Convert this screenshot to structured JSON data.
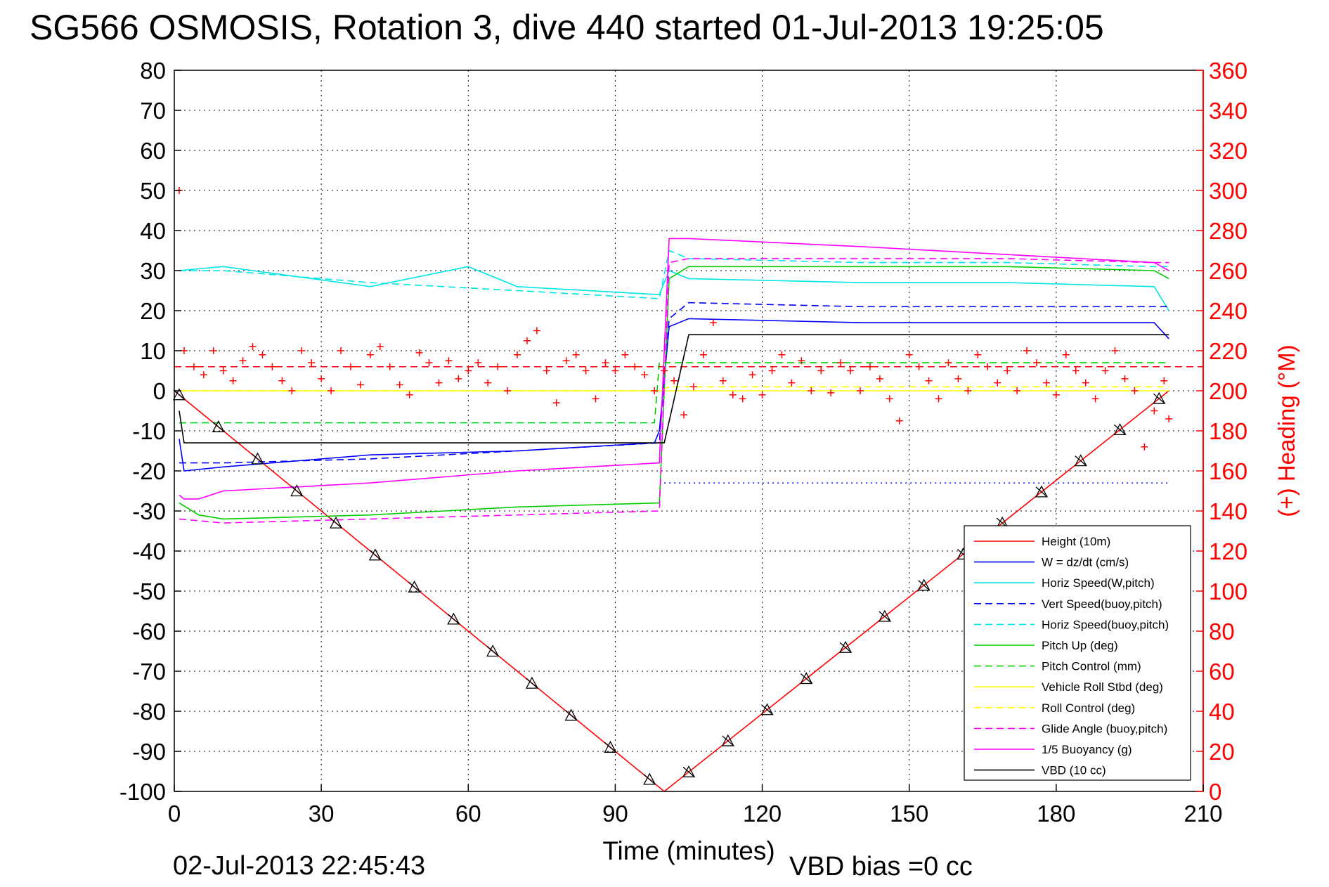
{
  "chart_data": {
    "type": "line",
    "title": "SG566 OSMOSIS, Rotation 3, dive 440 started 01-Jul-2013 19:25:05",
    "xlabel": "Time (minutes)",
    "ylabel": "",
    "y2label": "(+) Heading (°M)",
    "xlim": [
      0,
      210
    ],
    "ylim": [
      -100,
      80
    ],
    "y2lim": [
      0,
      360
    ],
    "xticks": [
      0,
      30,
      60,
      90,
      120,
      150,
      180,
      210
    ],
    "yticks": [
      80,
      70,
      60,
      50,
      40,
      30,
      20,
      10,
      0,
      -10,
      -20,
      -30,
      -40,
      -50,
      -60,
      -70,
      -80,
      -90,
      -100
    ],
    "y2ticks": [
      360,
      340,
      320,
      300,
      280,
      260,
      240,
      220,
      200,
      180,
      160,
      140,
      120,
      100,
      80,
      60,
      40,
      20,
      0
    ],
    "grid": true,
    "legend_position": "bottom-right",
    "series": [
      {
        "name": "Height (10m)",
        "color": "#ff0000",
        "style": "solid",
        "x": [
          0,
          100,
          203
        ],
        "y": [
          0,
          -100,
          0
        ]
      },
      {
        "name": "W = dz/dt (cm/s)",
        "color": "#0000ff",
        "style": "solid",
        "x": [
          1,
          2,
          10,
          40,
          70,
          98,
          99,
          101,
          105,
          140,
          170,
          200,
          203
        ],
        "y": [
          -12,
          -20,
          -19,
          -16,
          -15,
          -13,
          -10,
          16,
          18,
          17,
          17,
          17,
          13
        ]
      },
      {
        "name": "Horiz Speed(W,pitch)",
        "color": "#00e5e5",
        "style": "solid",
        "x": [
          1,
          10,
          40,
          60,
          70,
          99,
          101,
          105,
          140,
          170,
          200,
          203
        ],
        "y": [
          30,
          31,
          26,
          31,
          26,
          24,
          30,
          28,
          27,
          27,
          26,
          20
        ]
      },
      {
        "name": "Vert Speed(buoy,pitch)",
        "color": "#0000ff",
        "style": "dashed",
        "x": [
          1,
          10,
          40,
          70,
          99,
          101,
          105,
          140,
          170,
          200,
          203
        ],
        "y": [
          -18,
          -18,
          -17,
          -15,
          -13,
          18,
          22,
          21,
          21,
          21,
          21
        ]
      },
      {
        "name": "Horiz Speed(buoy,pitch)",
        "color": "#00e5e5",
        "style": "dashed",
        "x": [
          1,
          10,
          40,
          70,
          99,
          101,
          105,
          140,
          170,
          200,
          203
        ],
        "y": [
          30,
          30,
          27,
          25,
          23,
          35,
          33,
          32,
          32,
          31,
          31
        ]
      },
      {
        "name": "Pitch Up (deg)",
        "color": "#00cc00",
        "style": "solid",
        "x": [
          1,
          5,
          10,
          40,
          70,
          99,
          101,
          105,
          140,
          170,
          200,
          203
        ],
        "y": [
          -28,
          -31,
          -32,
          -31,
          -29,
          -28,
          28,
          31,
          31,
          31,
          30,
          28
        ]
      },
      {
        "name": "Pitch Control (mm)",
        "color": "#00cc00",
        "style": "dashed",
        "x": [
          1,
          98,
          99,
          203
        ],
        "y": [
          -8,
          -8,
          7,
          7
        ]
      },
      {
        "name": "Vehicle Roll Stbd (deg)",
        "color": "#ffff00",
        "style": "solid",
        "x": [
          1,
          99,
          101,
          203
        ],
        "y": [
          0,
          0,
          0,
          0
        ]
      },
      {
        "name": "Roll Control (deg)",
        "color": "#ffff00",
        "style": "dashed",
        "x": [
          1,
          99,
          101,
          203
        ],
        "y": [
          0,
          0,
          1,
          1
        ]
      },
      {
        "name": "Glide Angle (buoy,pitch)",
        "color": "#ff00ff",
        "style": "dashed",
        "x": [
          1,
          10,
          40,
          70,
          99,
          101,
          105,
          140,
          170,
          200,
          203
        ],
        "y": [
          -32,
          -33,
          -32,
          -31,
          -30,
          32,
          33,
          33,
          33,
          32,
          32
        ]
      },
      {
        "name": "1/5 Buoyancy (g)",
        "color": "#ff00ff",
        "style": "solid",
        "x": [
          1,
          2,
          5,
          10,
          40,
          70,
          99,
          101,
          105,
          140,
          170,
          200,
          203
        ],
        "y": [
          -26,
          -27,
          -27,
          -25,
          -23,
          -20,
          -18,
          38,
          38,
          36,
          34,
          32,
          30
        ]
      },
      {
        "name": "VBD (10 cc)",
        "color": "#000000",
        "style": "solid",
        "x": [
          1,
          2,
          100,
          105,
          203
        ],
        "y": [
          -5,
          -13,
          -13,
          14,
          14
        ]
      }
    ],
    "heading_markers": {
      "color": "#ff0000",
      "marker": "+",
      "x": [
        1,
        2,
        4,
        6,
        8,
        10,
        12,
        14,
        16,
        18,
        20,
        22,
        24,
        26,
        28,
        30,
        32,
        34,
        36,
        38,
        40,
        42,
        44,
        46,
        48,
        50,
        52,
        54,
        56,
        58,
        60,
        62,
        64,
        66,
        68,
        70,
        72,
        74,
        76,
        78,
        80,
        82,
        84,
        86,
        88,
        90,
        92,
        94,
        96,
        98,
        100,
        102,
        104,
        106,
        108,
        110,
        112,
        114,
        116,
        118,
        120,
        122,
        124,
        126,
        128,
        130,
        132,
        134,
        136,
        138,
        140,
        142,
        144,
        146,
        148,
        150,
        152,
        154,
        156,
        158,
        160,
        162,
        164,
        166,
        168,
        170,
        172,
        174,
        176,
        178,
        180,
        182,
        184,
        186,
        188,
        190,
        192,
        194,
        196,
        198,
        200,
        202,
        203
      ],
      "y": [
        300,
        220,
        212,
        208,
        220,
        210,
        205,
        215,
        222,
        218,
        212,
        205,
        200,
        220,
        214,
        206,
        200,
        220,
        212,
        203,
        218,
        222,
        212,
        203,
        198,
        219,
        214,
        204,
        215,
        206,
        210,
        214,
        204,
        212,
        200,
        218,
        225,
        230,
        210,
        194,
        215,
        218,
        210,
        196,
        214,
        210,
        218,
        212,
        208,
        200,
        210,
        205,
        188,
        202,
        218,
        234,
        205,
        198,
        196,
        208,
        198,
        210,
        218,
        204,
        215,
        200,
        210,
        199,
        214,
        210,
        200,
        212,
        206,
        196,
        185,
        218,
        212,
        205,
        196,
        214,
        206,
        200,
        218,
        212,
        204,
        210,
        200,
        220,
        214,
        204,
        198,
        218,
        210,
        204,
        196,
        210,
        220,
        206,
        200,
        172,
        190,
        205,
        186
      ]
    },
    "reference_lines": [
      {
        "axis": "y2",
        "color": "#ff0000",
        "style": "dashed",
        "value": 212
      },
      {
        "axis": "y",
        "color": "#0000ff",
        "style": "dotted",
        "x": [
          100,
          203
        ],
        "value": -23
      }
    ],
    "vbd_bias_label": "VBD bias =0 cc",
    "timestamp": "02-Jul-2013 22:45:43"
  }
}
